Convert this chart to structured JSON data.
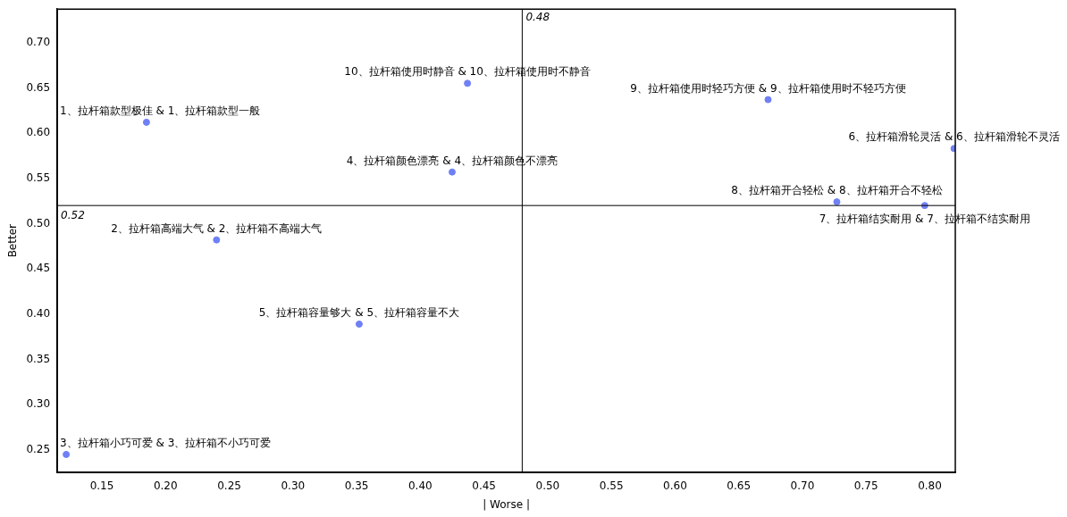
{
  "chart_data": {
    "type": "scatter",
    "xlabel": "| Worse |",
    "ylabel": "Better",
    "xlim": [
      0.115,
      0.82
    ],
    "ylim": [
      0.225,
      0.737
    ],
    "xticks": [
      0.15,
      {
        "value": 0.2,
        "label": "0.20"
      },
      0.25,
      {
        "value": 0.3,
        "label": "0.30"
      },
      0.35,
      {
        "value": 0.4,
        "label": "0.40"
      },
      0.45,
      {
        "value": 0.5,
        "label": "0.50"
      },
      0.55,
      {
        "value": 0.6,
        "label": "0.60"
      },
      0.65,
      {
        "value": 0.7,
        "label": "0.70"
      },
      0.75,
      {
        "value": 0.8,
        "label": "0.80"
      }
    ],
    "yticks": [
      0.25,
      {
        "value": 0.3,
        "label": "0.30"
      },
      0.35,
      {
        "value": 0.4,
        "label": "0.40"
      },
      0.45,
      {
        "value": 0.5,
        "label": "0.50"
      },
      0.55,
      {
        "value": 0.6,
        "label": "0.60"
      },
      0.65,
      {
        "value": 0.7,
        "label": "0.70"
      }
    ],
    "grid": false,
    "legend": false,
    "marker": "circle",
    "ref_lines": [
      {
        "axis": "x",
        "value": 0.48,
        "label": "0.48",
        "color": "#000000"
      },
      {
        "axis": "y",
        "value": 0.52,
        "label": "0.52",
        "color": "#000000"
      }
    ],
    "series": [
      {
        "name": "1、拉杆箱款型极佳 & 1、拉杆箱款型一般",
        "color": "#6f80f5",
        "x": [
          0.185
        ],
        "values": [
          0.612
        ]
      },
      {
        "name": "2、拉杆箱高端大气 & 2、拉杆箱不高端大气",
        "color": "#6f80f5",
        "x": [
          0.24
        ],
        "values": [
          0.482
        ]
      },
      {
        "name": "3、拉杆箱小巧可爱 & 3、拉杆箱不小巧可爱",
        "color": "#6f80f5",
        "x": [
          0.122
        ],
        "values": [
          0.245
        ]
      },
      {
        "name": "4、拉杆箱颜色漂亮 & 4、拉杆箱颜色不漂亮",
        "color": "#6f80f5",
        "x": [
          0.425
        ],
        "values": [
          0.557
        ]
      },
      {
        "name": "5、拉杆箱容量够大 & 5、拉杆箱容量不大",
        "color": "#6f80f5",
        "x": [
          0.352
        ],
        "values": [
          0.389
        ]
      },
      {
        "name": "6、拉杆箱滑轮灵活 & 6、拉杆箱滑轮不灵活",
        "color": "#6f80f5",
        "x": [
          0.819
        ],
        "values": [
          0.583
        ]
      },
      {
        "name": "7、拉杆箱结实耐用 & 7、拉杆箱不结实耐用",
        "color": "#6f80f5",
        "x": [
          0.796
        ],
        "values": [
          0.52
        ]
      },
      {
        "name": "8、拉杆箱开合轻松 & 8、拉杆箱开合不轻松",
        "color": "#6f80f5",
        "x": [
          0.727
        ],
        "values": [
          0.524
        ]
      },
      {
        "name": "9、拉杆箱使用时轻巧方便 & 9、拉杆箱使用时不轻巧方便",
        "color": "#6f80f5",
        "x": [
          0.673
        ],
        "values": [
          0.637
        ]
      },
      {
        "name": "10、拉杆箱使用时静音 & 10、拉杆箱使用时不静音",
        "color": "#6f80f5",
        "x": [
          0.437
        ],
        "values": [
          0.655
        ]
      }
    ]
  }
}
